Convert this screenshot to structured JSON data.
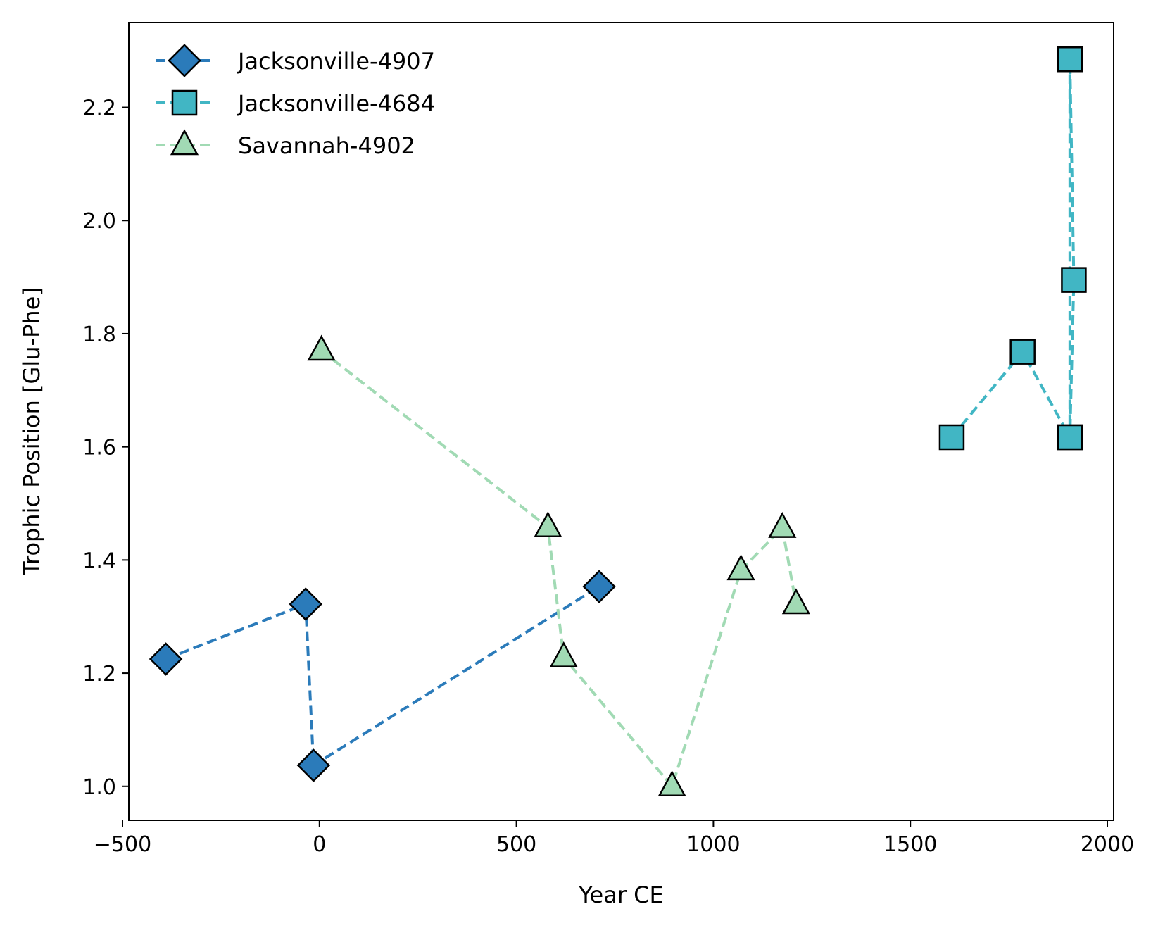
{
  "chart_data": {
    "type": "line",
    "title": "",
    "xlabel": "Year CE",
    "ylabel": "Trophic Position [Glu-Phe]",
    "xlim": [
      -500,
      2000
    ],
    "ylim": [
      0.94,
      2.35
    ],
    "xticks": [
      -500,
      0,
      500,
      1000,
      1500,
      2000
    ],
    "xtick_labels": [
      "−500",
      "0",
      "500",
      "1000",
      "1500",
      "2000"
    ],
    "yticks": [
      1.0,
      1.2,
      1.4,
      1.6,
      1.8,
      2.0,
      2.2
    ],
    "ytick_labels": [
      "1.0",
      "1.2",
      "1.4",
      "1.6",
      "1.8",
      "2.0",
      "2.2"
    ],
    "grid": false,
    "legend_position": "top-left",
    "series": [
      {
        "name": "Jacksonville-4907",
        "marker": "diamond",
        "color": "#2b7bba",
        "x": [
          -390,
          -35,
          -15,
          710
        ],
        "y": [
          1.225,
          1.322,
          1.037,
          1.353
        ]
      },
      {
        "name": "Jacksonville-4684",
        "marker": "square",
        "color": "#41b6c4",
        "x": [
          1605,
          1785,
          1905,
          1905,
          1915,
          1905
        ],
        "y": [
          1.617,
          1.768,
          1.617,
          2.285,
          1.895,
          1.617
        ]
      },
      {
        "name": "Savannah-4902",
        "marker": "triangle",
        "color": "#a1dab4",
        "x": [
          5,
          580,
          620,
          895,
          1070,
          1175,
          1210
        ],
        "y": [
          1.77,
          1.458,
          1.228,
          1.0,
          1.382,
          1.457,
          1.322
        ]
      }
    ]
  }
}
